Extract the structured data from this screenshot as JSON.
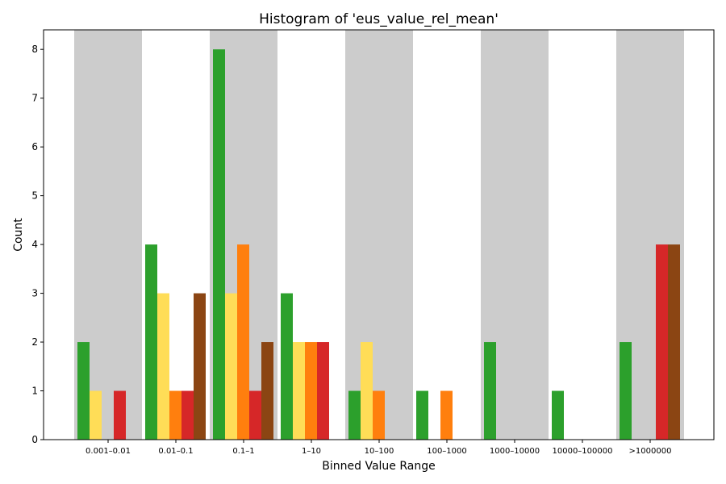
{
  "chart_data": {
    "type": "bar",
    "title": "Histogram of 'eus_value_rel_mean'",
    "xlabel": "Binned Value Range",
    "ylabel": "Count",
    "ylim": [
      0,
      8.4
    ],
    "yticks": [
      0,
      1,
      2,
      3,
      4,
      5,
      6,
      7,
      8
    ],
    "grid": false,
    "legend": "none",
    "categories": [
      "0.001–0.01",
      "0.01–0.1",
      "0.1–1",
      "1–10",
      "10–100",
      "100–1000",
      "1000–10000",
      "10000–100000",
      ">1000000"
    ],
    "band_color": "#cccccc",
    "series": [
      {
        "color": "#2ca02c",
        "values": [
          2,
          4,
          8,
          3,
          1,
          1,
          2,
          1,
          2
        ]
      },
      {
        "color": "#ffdd57",
        "values": [
          1,
          3,
          3,
          2,
          2,
          0,
          0,
          0,
          0
        ]
      },
      {
        "color": "#ff7f0e",
        "values": [
          0,
          1,
          4,
          2,
          1,
          1,
          0,
          0,
          0
        ]
      },
      {
        "color": "#d62728",
        "values": [
          1,
          1,
          1,
          2,
          0,
          0,
          0,
          0,
          4
        ]
      },
      {
        "color": "#8b4513",
        "values": [
          0,
          3,
          2,
          0,
          0,
          0,
          0,
          0,
          4
        ]
      }
    ]
  }
}
